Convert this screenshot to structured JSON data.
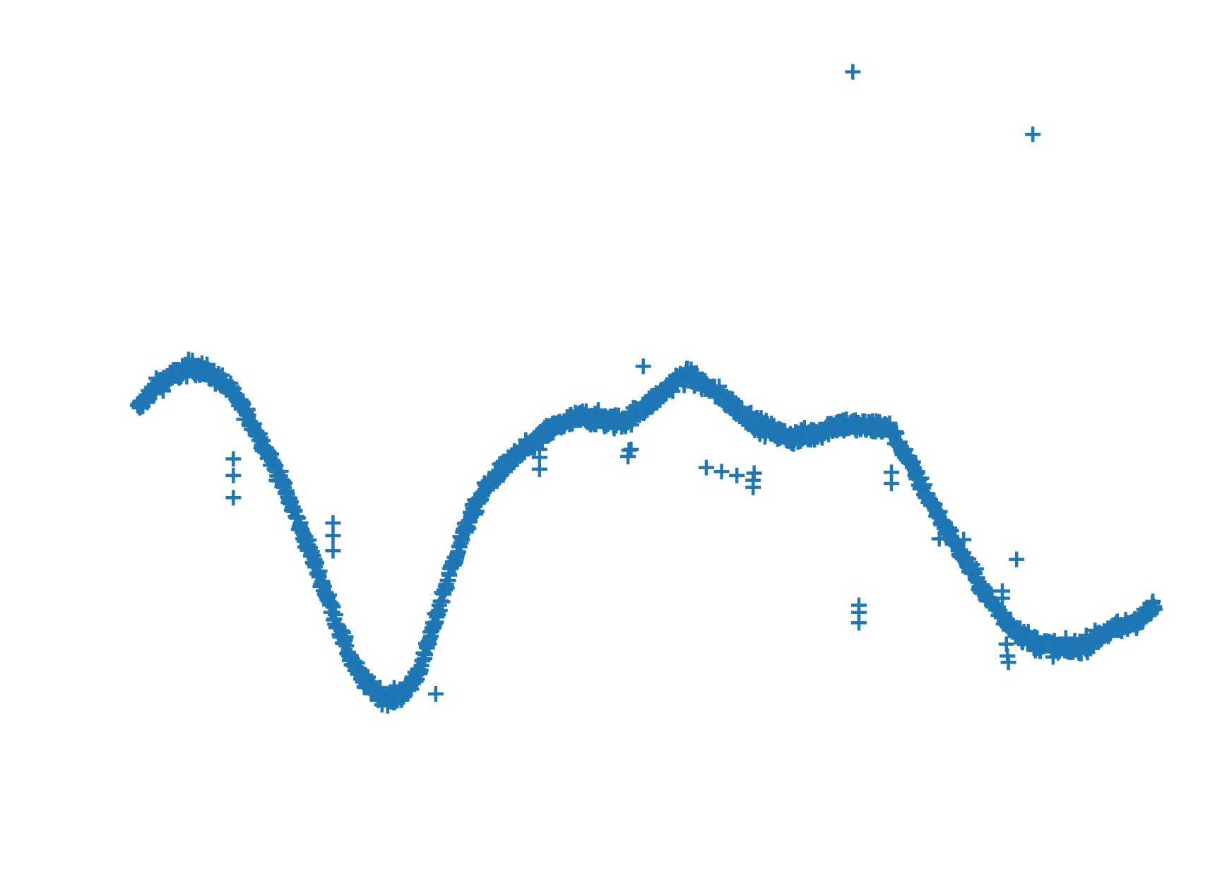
{
  "chart_data": {
    "type": "scatter",
    "title": "",
    "xlabel": "",
    "ylabel": "",
    "axes_visible": false,
    "grid": false,
    "legend": "none",
    "marker": "plus",
    "color": "#1f77b4",
    "xlim": [
      0,
      1
    ],
    "ylim": [
      0,
      1
    ],
    "outlier_series": {
      "x": [
        0.703,
        0.88,
        0.497,
        0.482,
        0.483,
        0.485,
        0.605,
        0.605,
        0.606,
        0.094,
        0.094,
        0.094,
        0.293,
        0.192,
        0.192,
        0.192,
        0.395,
        0.395,
        0.395,
        0.589,
        0.559,
        0.574,
        0.741,
        0.741,
        0.709,
        0.709,
        0.709,
        0.788,
        0.852,
        0.864,
        0.85,
        0.85,
        0.856,
        0.812,
        0.855,
        0.854
      ],
      "y": [
        0.936,
        0.857,
        0.564,
        0.45,
        0.458,
        0.459,
        0.411,
        0.42,
        0.429,
        0.398,
        0.426,
        0.447,
        0.15,
        0.366,
        0.35,
        0.331,
        0.434,
        0.449,
        0.459,
        0.426,
        0.436,
        0.431,
        0.416,
        0.43,
        0.262,
        0.253,
        0.24,
        0.346,
        0.252,
        0.32,
        0.28,
        0.271,
        0.19,
        0.345,
        0.198,
        0.213
      ]
    },
    "trend": {
      "x": [
        0.0,
        0.01,
        0.02,
        0.03,
        0.04,
        0.05,
        0.06,
        0.07,
        0.08,
        0.09,
        0.1,
        0.11,
        0.12,
        0.13,
        0.14,
        0.15,
        0.16,
        0.17,
        0.18,
        0.19,
        0.2,
        0.21,
        0.22,
        0.23,
        0.24,
        0.25,
        0.26,
        0.27,
        0.28,
        0.29,
        0.3,
        0.31,
        0.32,
        0.33,
        0.34,
        0.35,
        0.36,
        0.37,
        0.38,
        0.39,
        0.4,
        0.41,
        0.42,
        0.43,
        0.44,
        0.45,
        0.46,
        0.47,
        0.48,
        0.49,
        0.5,
        0.51,
        0.52,
        0.53,
        0.54,
        0.55,
        0.56,
        0.57,
        0.58,
        0.59,
        0.6,
        0.61,
        0.62,
        0.63,
        0.64,
        0.65,
        0.66,
        0.67,
        0.68,
        0.69,
        0.7,
        0.71,
        0.72,
        0.73,
        0.74,
        0.75,
        0.76,
        0.77,
        0.78,
        0.79,
        0.8,
        0.81,
        0.82,
        0.83,
        0.84,
        0.85,
        0.86,
        0.87,
        0.88,
        0.89,
        0.9,
        0.91,
        0.92,
        0.93,
        0.94,
        0.95,
        0.96,
        0.97,
        0.98,
        0.99,
        1.0
      ],
      "y": [
        0.51,
        0.527,
        0.541,
        0.549,
        0.555,
        0.562,
        0.562,
        0.555,
        0.548,
        0.535,
        0.518,
        0.497,
        0.474,
        0.449,
        0.422,
        0.392,
        0.36,
        0.329,
        0.294,
        0.26,
        0.225,
        0.193,
        0.17,
        0.157,
        0.148,
        0.145,
        0.15,
        0.164,
        0.19,
        0.232,
        0.275,
        0.315,
        0.352,
        0.382,
        0.405,
        0.423,
        0.436,
        0.448,
        0.458,
        0.468,
        0.478,
        0.486,
        0.493,
        0.497,
        0.501,
        0.498,
        0.495,
        0.494,
        0.496,
        0.505,
        0.514,
        0.524,
        0.535,
        0.547,
        0.552,
        0.546,
        0.538,
        0.53,
        0.52,
        0.51,
        0.5,
        0.491,
        0.484,
        0.479,
        0.474,
        0.475,
        0.477,
        0.481,
        0.487,
        0.491,
        0.49,
        0.488,
        0.488,
        0.488,
        0.484,
        0.464,
        0.44,
        0.415,
        0.392,
        0.37,
        0.348,
        0.326,
        0.305,
        0.284,
        0.265,
        0.248,
        0.234,
        0.224,
        0.216,
        0.212,
        0.209,
        0.207,
        0.208,
        0.212,
        0.218,
        0.227,
        0.231,
        0.235,
        0.242,
        0.249,
        0.26
      ]
    }
  }
}
